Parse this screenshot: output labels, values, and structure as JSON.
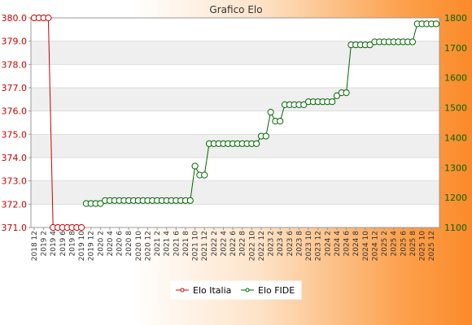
{
  "chart_data": {
    "type": "line",
    "title": "Grafico Elo",
    "legend_position": "bottom-center",
    "grid": true,
    "x_ticks": [
      "2018 12",
      "2019 2",
      "2019 4",
      "2019 6",
      "2019 8",
      "2019 10",
      "2019 12",
      "2020 2",
      "2020 4",
      "2020 6",
      "2020 8",
      "2020 10",
      "2020 12",
      "2021 2",
      "2021 4",
      "2021 6",
      "2021 8",
      "2021 10",
      "2021 12",
      "2022 2",
      "2022 4",
      "2022 6",
      "2022 8",
      "2022 10",
      "2022 12",
      "2023 2",
      "2023 4",
      "2023 6",
      "2023 8",
      "2023 10",
      "2023 12",
      "2024 2",
      "2024 4",
      "2024 6",
      "2024 8",
      "2024 10",
      "2024 12",
      "2025 2",
      "2025 4",
      "2025 6",
      "2025 8",
      "2025 10",
      "2025 12"
    ],
    "y_left": {
      "min": 371.0,
      "max": 380.0,
      "ticks": [
        "371.0",
        "372.0",
        "373.0",
        "374.0",
        "375.0",
        "376.0",
        "377.0",
        "378.0",
        "379.0",
        "380.0"
      ]
    },
    "y_right": {
      "min": 1100,
      "max": 1800,
      "ticks": [
        "1100",
        "1200",
        "1300",
        "1400",
        "1500",
        "1600",
        "1700",
        "1800"
      ]
    },
    "series": [
      {
        "name": "Elo Italia",
        "axis": "left",
        "color": "#cc0000",
        "x": [
          0,
          1,
          2,
          3,
          4,
          5,
          6,
          7,
          8,
          9,
          10
        ],
        "values": [
          380,
          380,
          380,
          380,
          371,
          371,
          371,
          371,
          371,
          371,
          371
        ]
      },
      {
        "name": "Elo FIDE",
        "axis": "right",
        "color": "#006600",
        "x": [
          11,
          12,
          13,
          14,
          15,
          16,
          17,
          18,
          19,
          20,
          21,
          22,
          23,
          24,
          25,
          26,
          27,
          28,
          29,
          30,
          31,
          32,
          33,
          34,
          35,
          36,
          37,
          38,
          39,
          40,
          41,
          42,
          43,
          44,
          45,
          46,
          47,
          48,
          49,
          50,
          51,
          52,
          53,
          54,
          55,
          56,
          57,
          58,
          59,
          60,
          61,
          62,
          63,
          64,
          65,
          66,
          67,
          68,
          69,
          70,
          71,
          72,
          73,
          74,
          75,
          76,
          77,
          78,
          79,
          80,
          81,
          82,
          83,
          84,
          85
        ],
        "values": [
          1180,
          1180,
          1180,
          1180,
          1190,
          1190,
          1190,
          1190,
          1190,
          1190,
          1190,
          1190,
          1190,
          1190,
          1190,
          1190,
          1190,
          1190,
          1190,
          1190,
          1190,
          1190,
          1190,
          1305,
          1275,
          1275,
          1380,
          1380,
          1380,
          1380,
          1380,
          1380,
          1380,
          1380,
          1380,
          1380,
          1380,
          1405,
          1405,
          1485,
          1455,
          1455,
          1510,
          1510,
          1510,
          1510,
          1510,
          1520,
          1520,
          1520,
          1520,
          1520,
          1520,
          1540,
          1550,
          1550,
          1710,
          1710,
          1710,
          1710,
          1710,
          1720,
          1720,
          1720,
          1720,
          1720,
          1720,
          1720,
          1720,
          1720,
          1780,
          1780,
          1780,
          1780,
          1780
        ]
      }
    ]
  }
}
